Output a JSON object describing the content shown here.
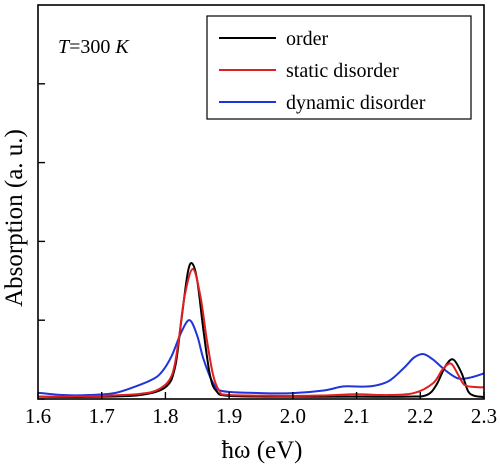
{
  "chart_data": {
    "type": "line",
    "title": "",
    "xlabel": "ħω (eV)",
    "ylabel": "Absorption (a. u.)",
    "annotation": {
      "italic_symbol": "T",
      "middle": "=300 ",
      "italic_unit": "K"
    },
    "xlim": [
      1.6,
      2.3
    ],
    "ylim": [
      0,
      1
    ],
    "x_ticks": [
      1.6,
      1.7,
      1.8,
      1.9,
      2.0,
      2.1,
      2.2,
      2.3
    ],
    "x_tick_labels": [
      "1.6",
      "1.7",
      "1.8",
      "1.9",
      "2.0",
      "2.1",
      "2.2",
      "2.3"
    ],
    "y_ticks": [
      0,
      0.2,
      0.4,
      0.6,
      0.8
    ],
    "y_tick_labels_shown": false,
    "legend_position": "top-right",
    "grid": false,
    "series": [
      {
        "name": "order",
        "color": "#000000",
        "points": [
          [
            1.6,
            0.006
          ],
          [
            1.65,
            0.005
          ],
          [
            1.7,
            0.006
          ],
          [
            1.76,
            0.01
          ],
          [
            1.8,
            0.03
          ],
          [
            1.815,
            0.08
          ],
          [
            1.825,
            0.2
          ],
          [
            1.835,
            0.32
          ],
          [
            1.842,
            0.344
          ],
          [
            1.85,
            0.3
          ],
          [
            1.86,
            0.17
          ],
          [
            1.87,
            0.06
          ],
          [
            1.88,
            0.02
          ],
          [
            1.9,
            0.008
          ],
          [
            2.0,
            0.006
          ],
          [
            2.1,
            0.006
          ],
          [
            2.18,
            0.006
          ],
          [
            2.21,
            0.01
          ],
          [
            2.225,
            0.035
          ],
          [
            2.24,
            0.085
          ],
          [
            2.252,
            0.1
          ],
          [
            2.265,
            0.065
          ],
          [
            2.275,
            0.02
          ],
          [
            2.285,
            0.008
          ],
          [
            2.3,
            0.005
          ]
        ]
      },
      {
        "name": "static disorder",
        "color": "#e02020",
        "points": [
          [
            1.6,
            0.006
          ],
          [
            1.65,
            0.006
          ],
          [
            1.7,
            0.008
          ],
          [
            1.76,
            0.013
          ],
          [
            1.79,
            0.025
          ],
          [
            1.81,
            0.06
          ],
          [
            1.82,
            0.14
          ],
          [
            1.83,
            0.26
          ],
          [
            1.843,
            0.33
          ],
          [
            1.855,
            0.26
          ],
          [
            1.865,
            0.15
          ],
          [
            1.875,
            0.06
          ],
          [
            1.885,
            0.02
          ],
          [
            1.9,
            0.01
          ],
          [
            2.0,
            0.008
          ],
          [
            2.05,
            0.009
          ],
          [
            2.1,
            0.012
          ],
          [
            2.15,
            0.01
          ],
          [
            2.19,
            0.015
          ],
          [
            2.22,
            0.04
          ],
          [
            2.235,
            0.075
          ],
          [
            2.248,
            0.09
          ],
          [
            2.26,
            0.06
          ],
          [
            2.27,
            0.035
          ],
          [
            2.29,
            0.03
          ],
          [
            2.3,
            0.03
          ]
        ]
      },
      {
        "name": "dynamic disorder",
        "color": "#1f35d8",
        "points": [
          [
            1.6,
            0.016
          ],
          [
            1.64,
            0.01
          ],
          [
            1.68,
            0.01
          ],
          [
            1.72,
            0.015
          ],
          [
            1.75,
            0.03
          ],
          [
            1.78,
            0.05
          ],
          [
            1.795,
            0.07
          ],
          [
            1.81,
            0.11
          ],
          [
            1.825,
            0.17
          ],
          [
            1.838,
            0.2
          ],
          [
            1.85,
            0.16
          ],
          [
            1.86,
            0.1
          ],
          [
            1.875,
            0.04
          ],
          [
            1.89,
            0.02
          ],
          [
            1.95,
            0.015
          ],
          [
            2.0,
            0.015
          ],
          [
            2.05,
            0.022
          ],
          [
            2.08,
            0.032
          ],
          [
            2.12,
            0.032
          ],
          [
            2.15,
            0.045
          ],
          [
            2.175,
            0.08
          ],
          [
            2.19,
            0.105
          ],
          [
            2.205,
            0.114
          ],
          [
            2.22,
            0.1
          ],
          [
            2.24,
            0.072
          ],
          [
            2.26,
            0.052
          ],
          [
            2.28,
            0.055
          ],
          [
            2.3,
            0.065
          ]
        ]
      }
    ]
  }
}
